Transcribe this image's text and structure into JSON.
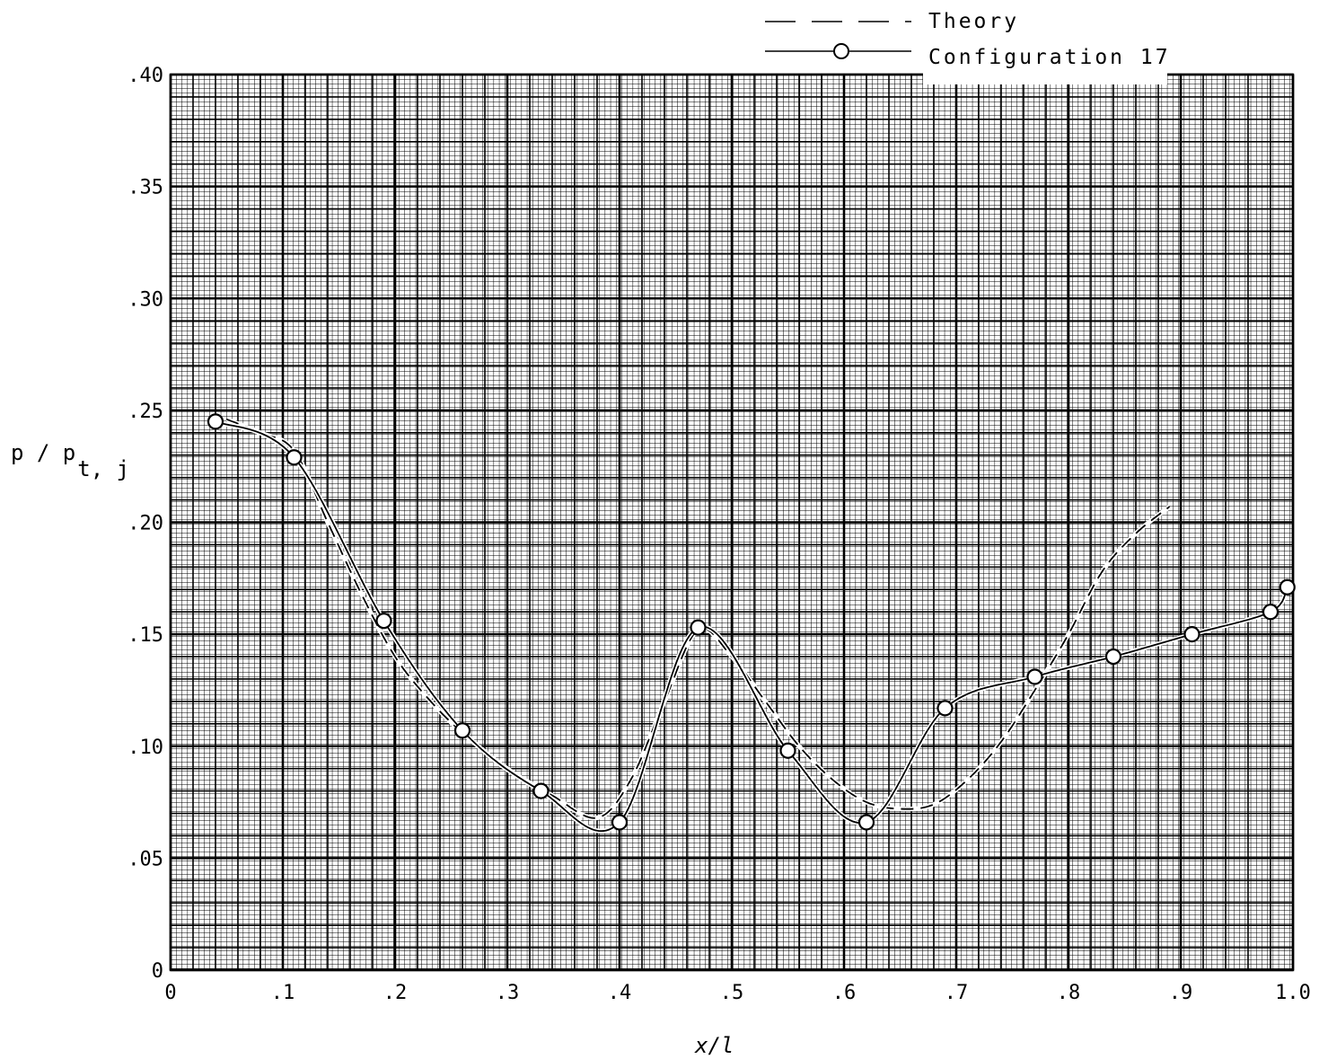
{
  "chart_data": {
    "type": "line",
    "title": "",
    "xlabel": "x/l",
    "ylabel": "p / p",
    "ylabel_subscript": "t, j",
    "xlim": [
      0,
      1.0
    ],
    "ylim": [
      0,
      0.4
    ],
    "x_ticks": [
      {
        "v": 0,
        "label": "0"
      },
      {
        "v": 0.1,
        "label": ".1"
      },
      {
        "v": 0.2,
        "label": ".2"
      },
      {
        "v": 0.3,
        "label": ".3"
      },
      {
        "v": 0.4,
        "label": ".4"
      },
      {
        "v": 0.5,
        "label": ".5"
      },
      {
        "v": 0.6,
        "label": ".6"
      },
      {
        "v": 0.7,
        "label": ".7"
      },
      {
        "v": 0.8,
        "label": ".8"
      },
      {
        "v": 0.9,
        "label": ".9"
      },
      {
        "v": 1.0,
        "label": "1.0"
      }
    ],
    "y_ticks": [
      {
        "v": 0,
        "label": "0"
      },
      {
        "v": 0.05,
        "label": ".05"
      },
      {
        "v": 0.1,
        "label": ".10"
      },
      {
        "v": 0.15,
        "label": ".15"
      },
      {
        "v": 0.2,
        "label": ".20"
      },
      {
        "v": 0.25,
        "label": ".25"
      },
      {
        "v": 0.3,
        "label": ".30"
      },
      {
        "v": 0.35,
        "label": ".35"
      },
      {
        "v": 0.4,
        "label": ".40"
      }
    ],
    "grid": true,
    "legend_position": "top-right",
    "series": [
      {
        "name": "Theory",
        "style": "dashed",
        "x": [
          0.05,
          0.08,
          0.11,
          0.14,
          0.17,
          0.2,
          0.23,
          0.26,
          0.3,
          0.34,
          0.38,
          0.41,
          0.44,
          0.47,
          0.5,
          0.53,
          0.56,
          0.59,
          0.62,
          0.65,
          0.68,
          0.71,
          0.74,
          0.77,
          0.8,
          0.83,
          0.86,
          0.89
        ],
        "y": [
          0.246,
          0.24,
          0.232,
          0.2,
          0.168,
          0.14,
          0.121,
          0.106,
          0.09,
          0.078,
          0.068,
          0.085,
          0.12,
          0.152,
          0.14,
          0.12,
          0.1,
          0.085,
          0.075,
          0.072,
          0.074,
          0.085,
          0.102,
          0.125,
          0.15,
          0.178,
          0.195,
          0.207
        ]
      },
      {
        "name": "Configuration 17",
        "style": "solid-with-circles",
        "x": [
          0.04,
          0.11,
          0.19,
          0.26,
          0.33,
          0.4,
          0.47,
          0.55,
          0.62,
          0.69,
          0.77,
          0.84,
          0.91,
          0.98,
          0.995
        ],
        "y": [
          0.245,
          0.229,
          0.156,
          0.107,
          0.08,
          0.066,
          0.153,
          0.098,
          0.066,
          0.117,
          0.131,
          0.14,
          0.15,
          0.16,
          0.171
        ]
      }
    ]
  },
  "legend": {
    "theory_label": "Theory",
    "config_label": "Configuration 17"
  }
}
